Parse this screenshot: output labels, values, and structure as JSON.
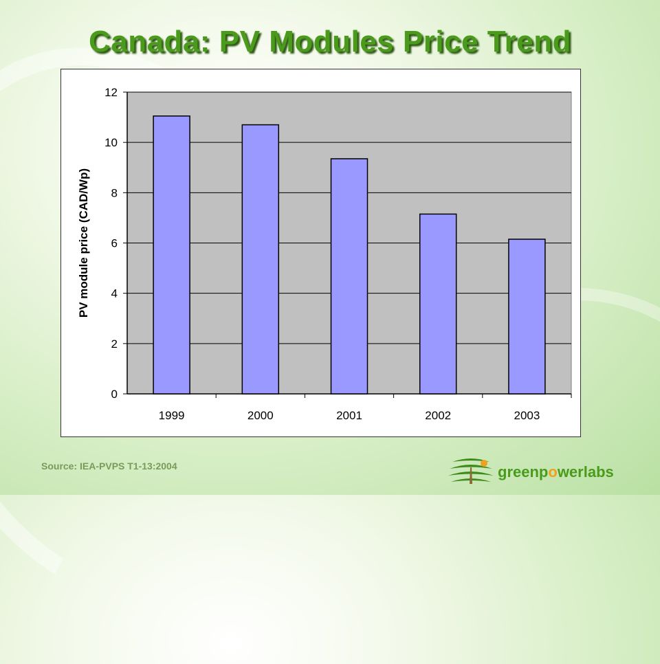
{
  "title": "Canada: PV Modules Price Trend",
  "source": "Source: IEA-PVPS T1-13:2004",
  "logo": {
    "text_before": "greenp",
    "text_o": "o",
    "text_after": "werlabs"
  },
  "colors": {
    "bar": "#9999ff",
    "plot_bg": "#c0c0c0",
    "title": "#4a9a1c"
  },
  "chart_data": {
    "type": "bar",
    "categories": [
      "1999",
      "2000",
      "2001",
      "2002",
      "2003"
    ],
    "values": [
      11.05,
      10.7,
      9.35,
      7.15,
      6.15
    ],
    "ylabel": "PV module price (CAD/Wp)",
    "xlabel": "",
    "ylim": [
      0,
      12
    ],
    "yticks": [
      0,
      2,
      4,
      6,
      8,
      10,
      12
    ],
    "grid": true,
    "legend": "none"
  }
}
